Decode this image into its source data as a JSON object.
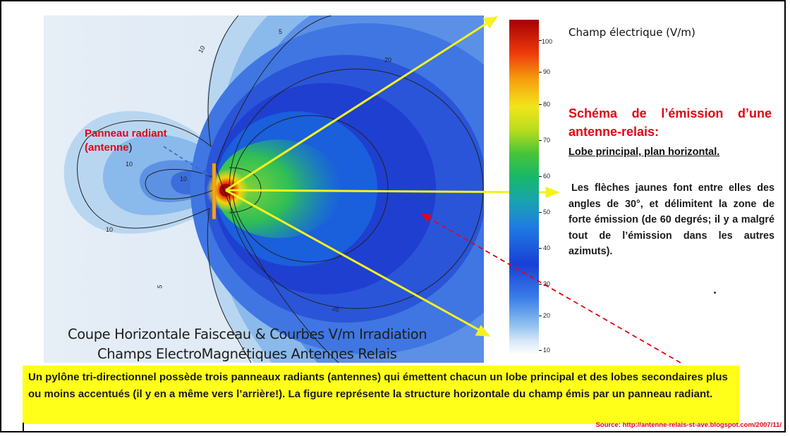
{
  "figure": {
    "caption_line1": "Coupe Horizontale Faisceau  & Courbes V/m  Irradiation",
    "caption_line2": "Champs ElectroMagnétiques Antennes Relais",
    "contour_labels": [
      "10",
      "10",
      "10",
      "10",
      "5",
      "5",
      "20",
      "20"
    ]
  },
  "colorbar": {
    "title": "Champ électrique (V/m)",
    "ticks": [
      "100",
      "90",
      "80",
      "70",
      "60",
      "50",
      "40",
      "30",
      "20",
      "10"
    ],
    "colors": [
      "#ffffff",
      "#cfe3f7",
      "#8fc0ef",
      "#3a7ee8",
      "#1a3fd6",
      "#1f7be3",
      "#17b86a",
      "#46c43a",
      "#b7dc1f",
      "#f2e51a",
      "#f6a10e",
      "#ef3a0b",
      "#a50006"
    ]
  },
  "antenna_label": {
    "line1": "Panneau radiant",
    "line2_red": "(antenne",
    "line2_black": ")"
  },
  "description": {
    "title": "Schéma de l’émission d’une antenne-relais:",
    "subtitle": "Lobe principal, plan  horizontal.",
    "body": "Les flèches jaunes font entre elles des angles de 30°, et délimitent la zone de forte émission (de 60 degrés; il y a malgré tout de l’émission dans les autres azimuts)."
  },
  "note": "Un pylône tri-directionnel possède trois panneaux radiants (antennes) qui émettent chacun un lobe principal et des lobes secondaires plus ou moins accentués (il y en a même vers l’arrière!). La figure représente la structure horizontale du champ émis par un panneau radiant.",
  "source": "Source: http://antenne-relais-st-ave.blogspot.com/2007/11/",
  "colors": {
    "arrow_yellow": "#f5f21f",
    "label_red": "#e30613",
    "note_bg": "#ffff1a"
  }
}
